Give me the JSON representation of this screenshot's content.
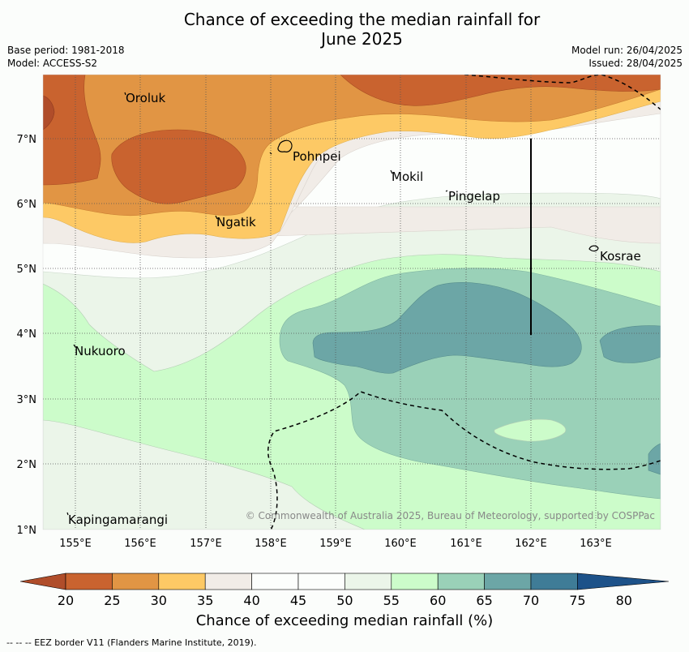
{
  "title_line1": "Chance of exceeding the median rainfall for",
  "title_line2": "June 2025",
  "meta": {
    "base_period": "Base period: 1981-2018",
    "model": "Model: ACCESS-S2",
    "model_run": "Model run: 26/04/2025",
    "issued": "Issued: 28/04/2025"
  },
  "axes": {
    "lon_ticks": [
      "155°E",
      "156°E",
      "157°E",
      "158°E",
      "159°E",
      "160°E",
      "161°E",
      "162°E",
      "163°E"
    ],
    "lat_ticks": [
      "7°N",
      "6°N",
      "5°N",
      "4°N",
      "3°N",
      "2°N",
      "1°N"
    ]
  },
  "places": [
    {
      "name": "Oroluk"
    },
    {
      "name": "Pohnpei"
    },
    {
      "name": "Mokil"
    },
    {
      "name": "Pingelap"
    },
    {
      "name": "Ngatik"
    },
    {
      "name": "Kosrae"
    },
    {
      "name": "Nukuoro"
    },
    {
      "name": "Kapingamarangi"
    }
  ],
  "copyright": "© Commonwealth of Australia 2025, Bureau of Meteorology, supported by COSPPac",
  "colorbar": {
    "ticks": [
      "20",
      "25",
      "30",
      "35",
      "40",
      "45",
      "50",
      "55",
      "60",
      "65",
      "70",
      "75",
      "80"
    ],
    "colors": [
      "#b04d2a",
      "#c9632f",
      "#e19544",
      "#fdc965",
      "#f1ece7",
      "#fcfefc",
      "#fcfefc",
      "#ebf5e9",
      "#ccfcca",
      "#9ad1b8",
      "#6ca6a6",
      "#3f7c97",
      "#1d5289"
    ],
    "label": "Chance of exceeding median rainfall (%)"
  },
  "footnote": "--  --  -- EEZ border V11 (Flanders Marine Institute, 2019)."
}
